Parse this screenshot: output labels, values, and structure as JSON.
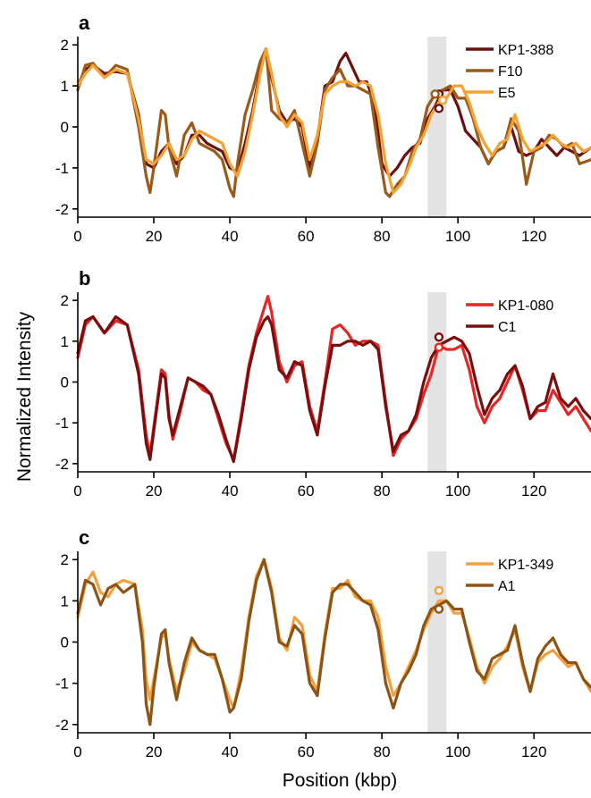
{
  "figure": {
    "ylabel": "Normalized Intensity",
    "xlabel": "Position (kbp)"
  },
  "chart_data": [
    {
      "panel": "a",
      "type": "line",
      "xlim": [
        0,
        135
      ],
      "ylim": [
        -2.2,
        2.2
      ],
      "xticks": [
        0,
        20,
        40,
        60,
        80,
        100,
        120
      ],
      "yticks": [
        2,
        1,
        0,
        -1,
        -2
      ],
      "highlight_x": [
        92,
        97
      ],
      "series": [
        {
          "name": "KP1-388",
          "color": "#6b1010",
          "x": [
            0,
            2,
            4,
            7,
            10,
            13,
            16,
            18,
            20,
            22,
            24,
            26,
            28,
            30,
            32,
            34,
            36,
            38,
            40,
            42,
            44,
            46,
            48,
            49.5,
            51,
            53,
            55,
            57,
            59,
            61,
            63,
            65,
            67,
            69,
            70.5,
            72,
            74,
            76,
            78,
            80,
            82,
            84,
            86,
            88,
            90,
            92,
            94,
            96,
            98,
            100,
            102,
            104,
            106,
            108,
            110,
            112,
            114,
            116,
            118,
            120,
            122,
            124,
            126,
            128,
            130,
            132,
            135
          ],
          "values": [
            1.0,
            1.4,
            1.5,
            1.3,
            1.35,
            1.3,
            0.3,
            -0.9,
            -1.0,
            -0.6,
            -0.4,
            -0.9,
            -0.7,
            -0.2,
            -0.2,
            -0.4,
            -0.5,
            -0.6,
            -1.0,
            -1.1,
            -0.4,
            0.4,
            1.4,
            1.9,
            1.2,
            0.4,
            0.1,
            0.2,
            0.0,
            -1.0,
            -0.3,
            1.0,
            1.1,
            1.6,
            1.8,
            1.5,
            1.1,
            1.1,
            0.6,
            -0.9,
            -1.2,
            -1.0,
            -0.7,
            -0.5,
            -0.4,
            0.2,
            0.5,
            0.9,
            0.9,
            0.5,
            -0.1,
            -0.3,
            -0.5,
            -0.9,
            -0.6,
            -0.5,
            0.0,
            -0.6,
            -0.7,
            -0.6,
            -0.3,
            -0.5,
            -0.7,
            -0.5,
            -0.6,
            -0.7,
            -0.5
          ],
          "marker": {
            "x": 95,
            "values": [
              0.45,
              0.8
            ]
          }
        },
        {
          "name": "F10",
          "color": "#9a5a18",
          "x": [
            0,
            2,
            4,
            7,
            10,
            13,
            16,
            18,
            19,
            20,
            22,
            23,
            24,
            26,
            28,
            30,
            32,
            34,
            36,
            38,
            40,
            41,
            42,
            44,
            46,
            48,
            49.5,
            51,
            53,
            55,
            57,
            59,
            61,
            63,
            65,
            67,
            69,
            71,
            73,
            75,
            77,
            79,
            81,
            82,
            84,
            86,
            88,
            90,
            92,
            94,
            96,
            98,
            100,
            102,
            104,
            106,
            108,
            110,
            112,
            114,
            116,
            118,
            120,
            122,
            124,
            126,
            128,
            130,
            132,
            135
          ],
          "values": [
            0.9,
            1.5,
            1.55,
            1.2,
            1.5,
            1.4,
            0.0,
            -1.2,
            -1.6,
            -1.0,
            0.4,
            0.3,
            -0.5,
            -1.2,
            -0.2,
            0.1,
            -0.4,
            -0.5,
            -0.6,
            -0.8,
            -1.5,
            -1.7,
            -0.9,
            0.3,
            0.9,
            1.6,
            1.9,
            0.4,
            0.2,
            0.1,
            0.4,
            -0.4,
            -1.2,
            -0.4,
            0.9,
            1.2,
            1.4,
            1.0,
            1.0,
            0.9,
            0.8,
            -0.5,
            -1.6,
            -1.7,
            -1.4,
            -1.2,
            -0.6,
            -0.3,
            0.5,
            0.8,
            0.9,
            1.0,
            0.7,
            0.7,
            0.2,
            -0.5,
            -0.9,
            -0.6,
            -0.5,
            0.2,
            -0.1,
            -1.4,
            -0.6,
            -0.5,
            -0.2,
            -0.3,
            -0.5,
            -0.4,
            -0.9,
            -0.8
          ],
          "marker": {
            "x": 94,
            "values": [
              0.8
            ]
          }
        },
        {
          "name": "E5",
          "color": "#f3a233",
          "x": [
            0,
            2,
            4,
            7,
            10,
            13,
            16,
            18,
            20,
            22,
            24,
            26,
            28,
            30,
            32,
            34,
            36,
            38,
            40,
            42,
            44,
            46,
            48,
            49.5,
            51,
            53,
            55,
            57,
            59,
            61,
            63,
            65,
            67,
            69,
            71,
            73,
            75,
            77,
            79,
            81,
            83,
            85,
            87,
            89,
            91,
            93,
            95,
            97,
            99,
            101,
            103,
            105,
            107,
            109,
            111,
            113,
            115,
            117,
            119,
            121,
            123,
            125,
            127,
            129,
            131,
            133,
            135
          ],
          "values": [
            1.0,
            1.3,
            1.5,
            1.2,
            1.4,
            1.3,
            0.2,
            -0.8,
            -0.9,
            -0.7,
            -0.4,
            -0.8,
            -0.7,
            -0.3,
            -0.1,
            -0.2,
            -0.3,
            -0.4,
            -0.9,
            -1.2,
            -0.6,
            0.3,
            1.3,
            1.9,
            1.3,
            0.3,
            0.0,
            0.3,
            0.1,
            -0.8,
            -0.2,
            0.8,
            1.0,
            1.1,
            1.1,
            1.0,
            1.1,
            1.0,
            0.3,
            -0.9,
            -1.6,
            -1.4,
            -1.0,
            -0.5,
            -0.2,
            0.3,
            0.6,
            0.7,
            1.0,
            1.0,
            0.6,
            0.0,
            -0.4,
            -0.7,
            -0.4,
            -0.3,
            0.3,
            -0.3,
            -0.6,
            -0.5,
            -0.4,
            -0.2,
            -0.4,
            -0.5,
            -0.4,
            -0.6,
            -0.5
          ],
          "marker": {
            "x": 96,
            "values": [
              0.65
            ]
          }
        }
      ]
    },
    {
      "panel": "b",
      "type": "line",
      "xlim": [
        0,
        135
      ],
      "ylim": [
        -2.2,
        2.2
      ],
      "xticks": [
        0,
        20,
        40,
        60,
        80,
        100,
        120
      ],
      "yticks": [
        2,
        1,
        0,
        -1,
        -2
      ],
      "highlight_x": [
        92,
        97
      ],
      "series": [
        {
          "name": "KP1-080",
          "color": "#e82424",
          "x": [
            0,
            2,
            4,
            7,
            10,
            13,
            16,
            18,
            19,
            20,
            22,
            23,
            24,
            25,
            27,
            29,
            31,
            33,
            35,
            37,
            39,
            41,
            43,
            45,
            47,
            49,
            50,
            51,
            53,
            55,
            57,
            59,
            61,
            63,
            65,
            67,
            69,
            71,
            73,
            75,
            77,
            79,
            81,
            83,
            85,
            87,
            89,
            91,
            93,
            95,
            97,
            99,
            101,
            103,
            105,
            107,
            109,
            111,
            113,
            115,
            117,
            119,
            121,
            123,
            125,
            127,
            129,
            131,
            133,
            135
          ],
          "values": [
            0.6,
            1.4,
            1.6,
            1.2,
            1.5,
            1.4,
            0.3,
            -1.3,
            -1.8,
            -1.1,
            0.3,
            0.2,
            -0.8,
            -1.4,
            -0.7,
            0.1,
            0.0,
            -0.2,
            -0.3,
            -0.9,
            -1.5,
            -1.9,
            -0.8,
            0.4,
            1.2,
            1.8,
            2.1,
            1.7,
            0.5,
            0.0,
            0.4,
            0.5,
            -0.6,
            -1.2,
            0.0,
            1.3,
            1.4,
            1.2,
            0.9,
            1.0,
            1.0,
            0.9,
            -0.5,
            -1.8,
            -1.4,
            -1.2,
            -0.9,
            -0.3,
            0.2,
            0.9,
            0.8,
            0.8,
            0.9,
            0.3,
            -0.6,
            -1.0,
            -0.6,
            -0.4,
            0.0,
            0.4,
            -0.2,
            -0.9,
            -0.7,
            -0.7,
            -0.2,
            -0.5,
            -0.8,
            -0.6,
            -0.9,
            -1.2
          ],
          "marker": {
            "x": 95,
            "values": [
              0.85
            ]
          }
        },
        {
          "name": "C1",
          "color": "#7a0e0e",
          "x": [
            0,
            2,
            4,
            7,
            10,
            13,
            16,
            18,
            19,
            20,
            22,
            23,
            24,
            25,
            27,
            29,
            31,
            33,
            35,
            37,
            39,
            41,
            43,
            45,
            47,
            49,
            50,
            51,
            53,
            55,
            57,
            59,
            61,
            63,
            65,
            67,
            69,
            71,
            73,
            75,
            77,
            79,
            81,
            83,
            85,
            87,
            89,
            91,
            93,
            95,
            97,
            99,
            101,
            103,
            105,
            107,
            109,
            111,
            113,
            115,
            117,
            119,
            121,
            123,
            125,
            127,
            129,
            131,
            133,
            135
          ],
          "values": [
            0.7,
            1.5,
            1.6,
            1.2,
            1.6,
            1.4,
            0.2,
            -1.5,
            -1.9,
            -1.2,
            0.2,
            0.1,
            -0.9,
            -1.3,
            -0.6,
            0.1,
            0.0,
            -0.1,
            -0.3,
            -0.8,
            -1.4,
            -1.95,
            -0.9,
            0.3,
            1.1,
            1.5,
            1.6,
            1.4,
            0.3,
            0.1,
            0.5,
            0.4,
            -0.7,
            -1.3,
            -0.1,
            0.9,
            0.9,
            1.0,
            1.0,
            0.9,
            1.0,
            0.8,
            -0.6,
            -1.7,
            -1.3,
            -1.2,
            -0.8,
            0.0,
            0.6,
            0.9,
            1.0,
            1.1,
            1.0,
            0.7,
            -0.1,
            -0.8,
            -0.4,
            -0.2,
            0.2,
            0.4,
            -0.1,
            -0.9,
            -0.6,
            -0.5,
            0.2,
            -0.4,
            -0.6,
            -0.4,
            -0.7,
            -0.9
          ],
          "marker": {
            "x": 95,
            "values": [
              1.1
            ]
          }
        }
      ]
    },
    {
      "panel": "c",
      "type": "line",
      "xlim": [
        0,
        135
      ],
      "ylim": [
        -2.2,
        2.2
      ],
      "xticks": [
        0,
        20,
        40,
        60,
        80,
        100,
        120
      ],
      "yticks": [
        2,
        1,
        0,
        -1,
        -2
      ],
      "highlight_x": [
        92,
        97
      ],
      "series": [
        {
          "name": "KP1-349",
          "color": "#f5a03e",
          "x": [
            0,
            2,
            4,
            6,
            8,
            10,
            12,
            15,
            17,
            18,
            19,
            20,
            22,
            23,
            24,
            26,
            28,
            30,
            32,
            34,
            36,
            38,
            40,
            41,
            43,
            45,
            47,
            49,
            51,
            53,
            55,
            57,
            59,
            61,
            63,
            65,
            67,
            69,
            71,
            73,
            75,
            77,
            79,
            81,
            83,
            85,
            87,
            89,
            91,
            93,
            95,
            97,
            99,
            101,
            103,
            105,
            107,
            109,
            111,
            113,
            115,
            117,
            119,
            121,
            123,
            125,
            127,
            129,
            131,
            133,
            135
          ],
          "values": [
            0.6,
            1.4,
            1.7,
            1.2,
            1.1,
            1.4,
            1.5,
            1.4,
            0.3,
            -0.9,
            -1.4,
            -0.9,
            0.1,
            0.2,
            -0.4,
            -1.2,
            -0.7,
            0.0,
            -0.2,
            -0.3,
            -0.4,
            -0.9,
            -1.4,
            -1.6,
            -0.7,
            0.6,
            1.6,
            2.0,
            1.3,
            0.1,
            -0.2,
            0.6,
            0.4,
            -0.8,
            -1.2,
            0.2,
            1.3,
            1.3,
            1.5,
            1.1,
            1.0,
            1.0,
            0.6,
            -0.6,
            -1.3,
            -1.0,
            -0.6,
            -0.2,
            0.3,
            0.7,
            1.0,
            1.0,
            0.7,
            0.7,
            0.1,
            -0.6,
            -1.0,
            -0.6,
            -0.4,
            -0.1,
            0.3,
            -0.6,
            -1.2,
            -0.5,
            -0.3,
            -0.2,
            -0.4,
            -0.6,
            -0.5,
            -0.9,
            -1.2
          ],
          "marker": {
            "x": 95,
            "values": [
              1.25
            ]
          }
        },
        {
          "name": "A1",
          "color": "#8c5414",
          "x": [
            0,
            2,
            4,
            6,
            8,
            10,
            12,
            15,
            17,
            18,
            19,
            20,
            22,
            23,
            24,
            26,
            28,
            30,
            32,
            34,
            36,
            38,
            40,
            41,
            43,
            45,
            47,
            49,
            51,
            53,
            55,
            57,
            59,
            61,
            63,
            65,
            67,
            69,
            71,
            73,
            75,
            77,
            79,
            81,
            83,
            85,
            87,
            89,
            91,
            93,
            95,
            97,
            99,
            101,
            103,
            105,
            107,
            109,
            111,
            113,
            115,
            117,
            119,
            121,
            123,
            125,
            127,
            129,
            131,
            133,
            135
          ],
          "values": [
            0.7,
            1.5,
            1.4,
            0.9,
            1.3,
            1.4,
            1.2,
            1.4,
            0.0,
            -1.5,
            -2.0,
            -1.1,
            0.2,
            0.3,
            -0.5,
            -1.4,
            -0.5,
            0.1,
            -0.2,
            -0.3,
            -0.3,
            -0.9,
            -1.7,
            -1.6,
            -0.9,
            0.5,
            1.5,
            2.0,
            1.2,
            0.0,
            -0.1,
            0.4,
            0.2,
            -1.0,
            -1.3,
            0.1,
            1.2,
            1.4,
            1.4,
            1.2,
            1.0,
            0.9,
            0.3,
            -1.0,
            -1.6,
            -1.0,
            -0.7,
            -0.3,
            0.4,
            0.8,
            0.9,
            1.0,
            0.8,
            0.8,
            0.0,
            -0.7,
            -0.9,
            -0.4,
            -0.3,
            -0.2,
            0.4,
            -0.5,
            -1.2,
            -0.4,
            -0.1,
            0.1,
            -0.3,
            -0.5,
            -0.5,
            -0.9,
            -1.1
          ],
          "marker": {
            "x": 95,
            "values": [
              0.8
            ]
          }
        }
      ]
    }
  ]
}
